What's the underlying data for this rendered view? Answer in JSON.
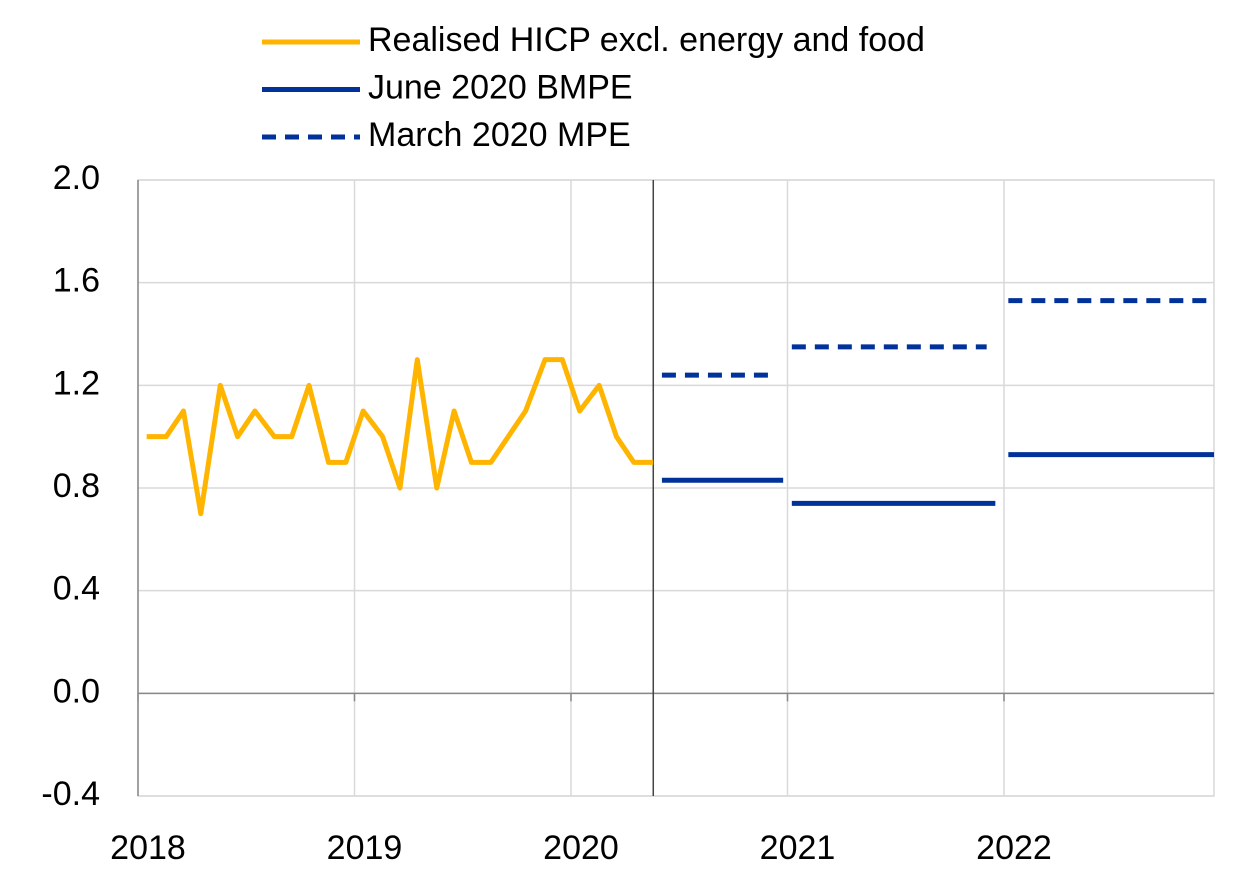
{
  "chart_data": {
    "type": "line",
    "series": [
      {
        "name": "Realised HICP excl. energy and food",
        "color": "#ffb400",
        "style": "solid",
        "x": [
          2018.04,
          2018.13,
          2018.21,
          2018.29,
          2018.38,
          2018.46,
          2018.54,
          2018.63,
          2018.71,
          2018.79,
          2018.88,
          2018.96,
          2019.04,
          2019.13,
          2019.21,
          2019.29,
          2019.38,
          2019.46,
          2019.54,
          2019.63,
          2019.71,
          2019.79,
          2019.88,
          2019.96,
          2020.04,
          2020.13,
          2020.21,
          2020.29,
          2020.38
        ],
        "values": [
          1.0,
          1.0,
          1.1,
          0.7,
          1.2,
          1.0,
          1.1,
          1.0,
          1.0,
          1.2,
          0.9,
          0.9,
          1.1,
          1.0,
          0.8,
          1.3,
          0.8,
          1.1,
          0.9,
          0.9,
          1.0,
          1.1,
          1.3,
          1.3,
          1.1,
          1.2,
          1.0,
          0.9,
          0.9
        ]
      },
      {
        "name": "June 2020 BMPE",
        "color": "#003299",
        "style": "solid",
        "x_start": [
          2020.42,
          2021.02,
          2022.02
        ],
        "x_end": [
          2020.98,
          2021.96,
          2022.97
        ],
        "values": [
          0.83,
          0.74,
          0.93
        ]
      },
      {
        "name": "March 2020 MPE",
        "color": "#003299",
        "style": "dashed",
        "x_start": [
          2020.42,
          2021.02,
          2022.02
        ],
        "x_end": [
          2020.92,
          2021.92,
          2022.97
        ],
        "values": [
          1.24,
          1.35,
          1.53
        ]
      }
    ],
    "xlim": [
      2018,
      2022.97
    ],
    "xticks": [
      2018,
      2019,
      2020,
      2021,
      2022
    ],
    "ylim": [
      -0.4,
      2.0
    ],
    "yticks": [
      {
        "value": -0.4,
        "label": "-0.4"
      },
      {
        "value": 0,
        "label": "0.0"
      },
      0.4,
      0.8,
      1.2,
      1.6,
      {
        "value": 2,
        "label": "2.0"
      }
    ],
    "vline": 2020.38,
    "grid": true,
    "legend": "top"
  }
}
